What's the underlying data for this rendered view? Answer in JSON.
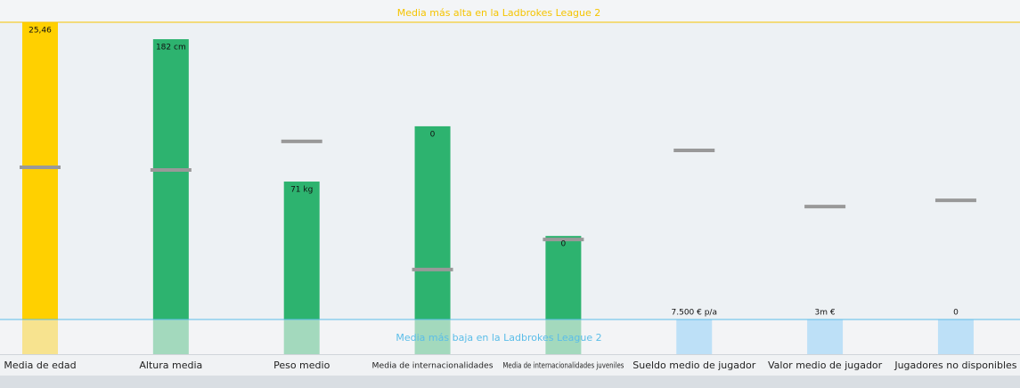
{
  "chart_data": {
    "type": "bar",
    "high_line": {
      "label": "Media más alta en la Ladbrokes League 2",
      "color": "#f5c400"
    },
    "low_line": {
      "label": "Media más baja en la Ladbrokes League 2",
      "color": "#5bbde8"
    },
    "ylim": [
      0,
      100
    ],
    "bars": [
      {
        "category": "Media de edad",
        "value_label": "25,46",
        "level": 100,
        "average": 51.2,
        "color": "#ffd000",
        "pale": "#f7e38f"
      },
      {
        "category": "Altura media",
        "value_label": "182 cm",
        "level": 94.3,
        "average": 50.3,
        "color": "#2db36f",
        "pale": "#a3d9bd"
      },
      {
        "category": "Peso medio",
        "value_label": "71 kg",
        "level": 46.4,
        "average": 59.9,
        "color": "#2db36f",
        "pale": "#a3d9bd"
      },
      {
        "category": "Media de internacionalidades",
        "value_label": "0",
        "level": 65,
        "average": 16.8,
        "color": "#2db36f",
        "pale": "#a3d9bd"
      },
      {
        "category": "Media de internacionalidades juveniles",
        "value_label": "0",
        "level": 28.1,
        "average": 26.9,
        "color": "#2db36f",
        "pale": "#a3d9bd"
      },
      {
        "category": "Sueldo medio de jugador",
        "value_label": "7.500 € p/a",
        "level": 0,
        "average": 56.9,
        "color": "#bde0f7",
        "pale": "#bde0f7"
      },
      {
        "category": "Valor medio de jugador",
        "value_label": "3m €",
        "level": 0,
        "average": 38,
        "color": "#bde0f7",
        "pale": "#bde0f7"
      },
      {
        "category": "Jugadores no disponibles",
        "value_label": "0",
        "level": 0,
        "average": 40.1,
        "color": "#bde0f7",
        "pale": "#bde0f7"
      }
    ]
  }
}
